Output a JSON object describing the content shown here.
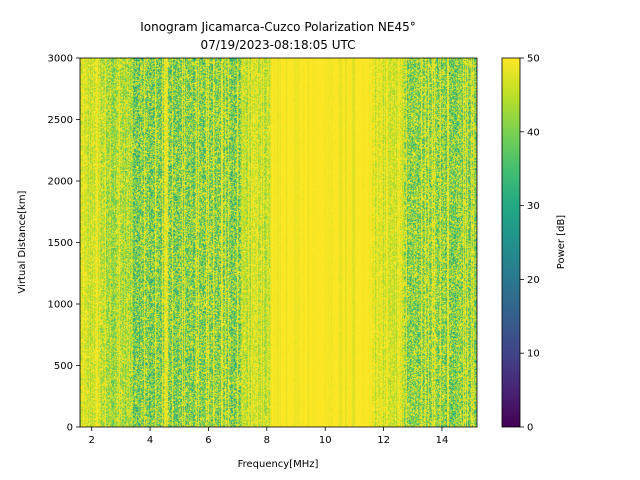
{
  "chart_data": {
    "type": "heatmap",
    "title_lines": [
      "Ionogram Jicamarca-Cuzco Polarization NE45°",
      "07/19/2023-08:18:05 UTC"
    ],
    "xlabel": "Frequency[MHz]",
    "ylabel": "Virtual Distance[km]",
    "xlim": [
      1.6,
      15.2
    ],
    "ylim": [
      0,
      3000
    ],
    "x_ticks": [
      2,
      4,
      6,
      8,
      10,
      12,
      14
    ],
    "y_ticks": [
      0,
      500,
      1000,
      1500,
      2000,
      2500,
      3000
    ],
    "colorbar": {
      "label": "Power [dB]",
      "range": [
        0,
        50
      ],
      "ticks": [
        0,
        10,
        20,
        30,
        40,
        50
      ],
      "colormap": "viridis"
    },
    "grid": false,
    "power_profile_by_frequency": [
      {
        "from_mhz": 1.6,
        "to_mhz": 2.3,
        "typical_db": 44
      },
      {
        "from_mhz": 2.3,
        "to_mhz": 3.4,
        "typical_db": 41
      },
      {
        "from_mhz": 3.4,
        "to_mhz": 7.1,
        "typical_db": 35
      },
      {
        "from_mhz": 7.1,
        "to_mhz": 8.1,
        "typical_db": 43
      },
      {
        "from_mhz": 8.1,
        "to_mhz": 11.6,
        "typical_db": 50
      },
      {
        "from_mhz": 11.6,
        "to_mhz": 12.7,
        "typical_db": 45
      },
      {
        "from_mhz": 12.7,
        "to_mhz": 15.2,
        "typical_db": 36
      }
    ]
  }
}
